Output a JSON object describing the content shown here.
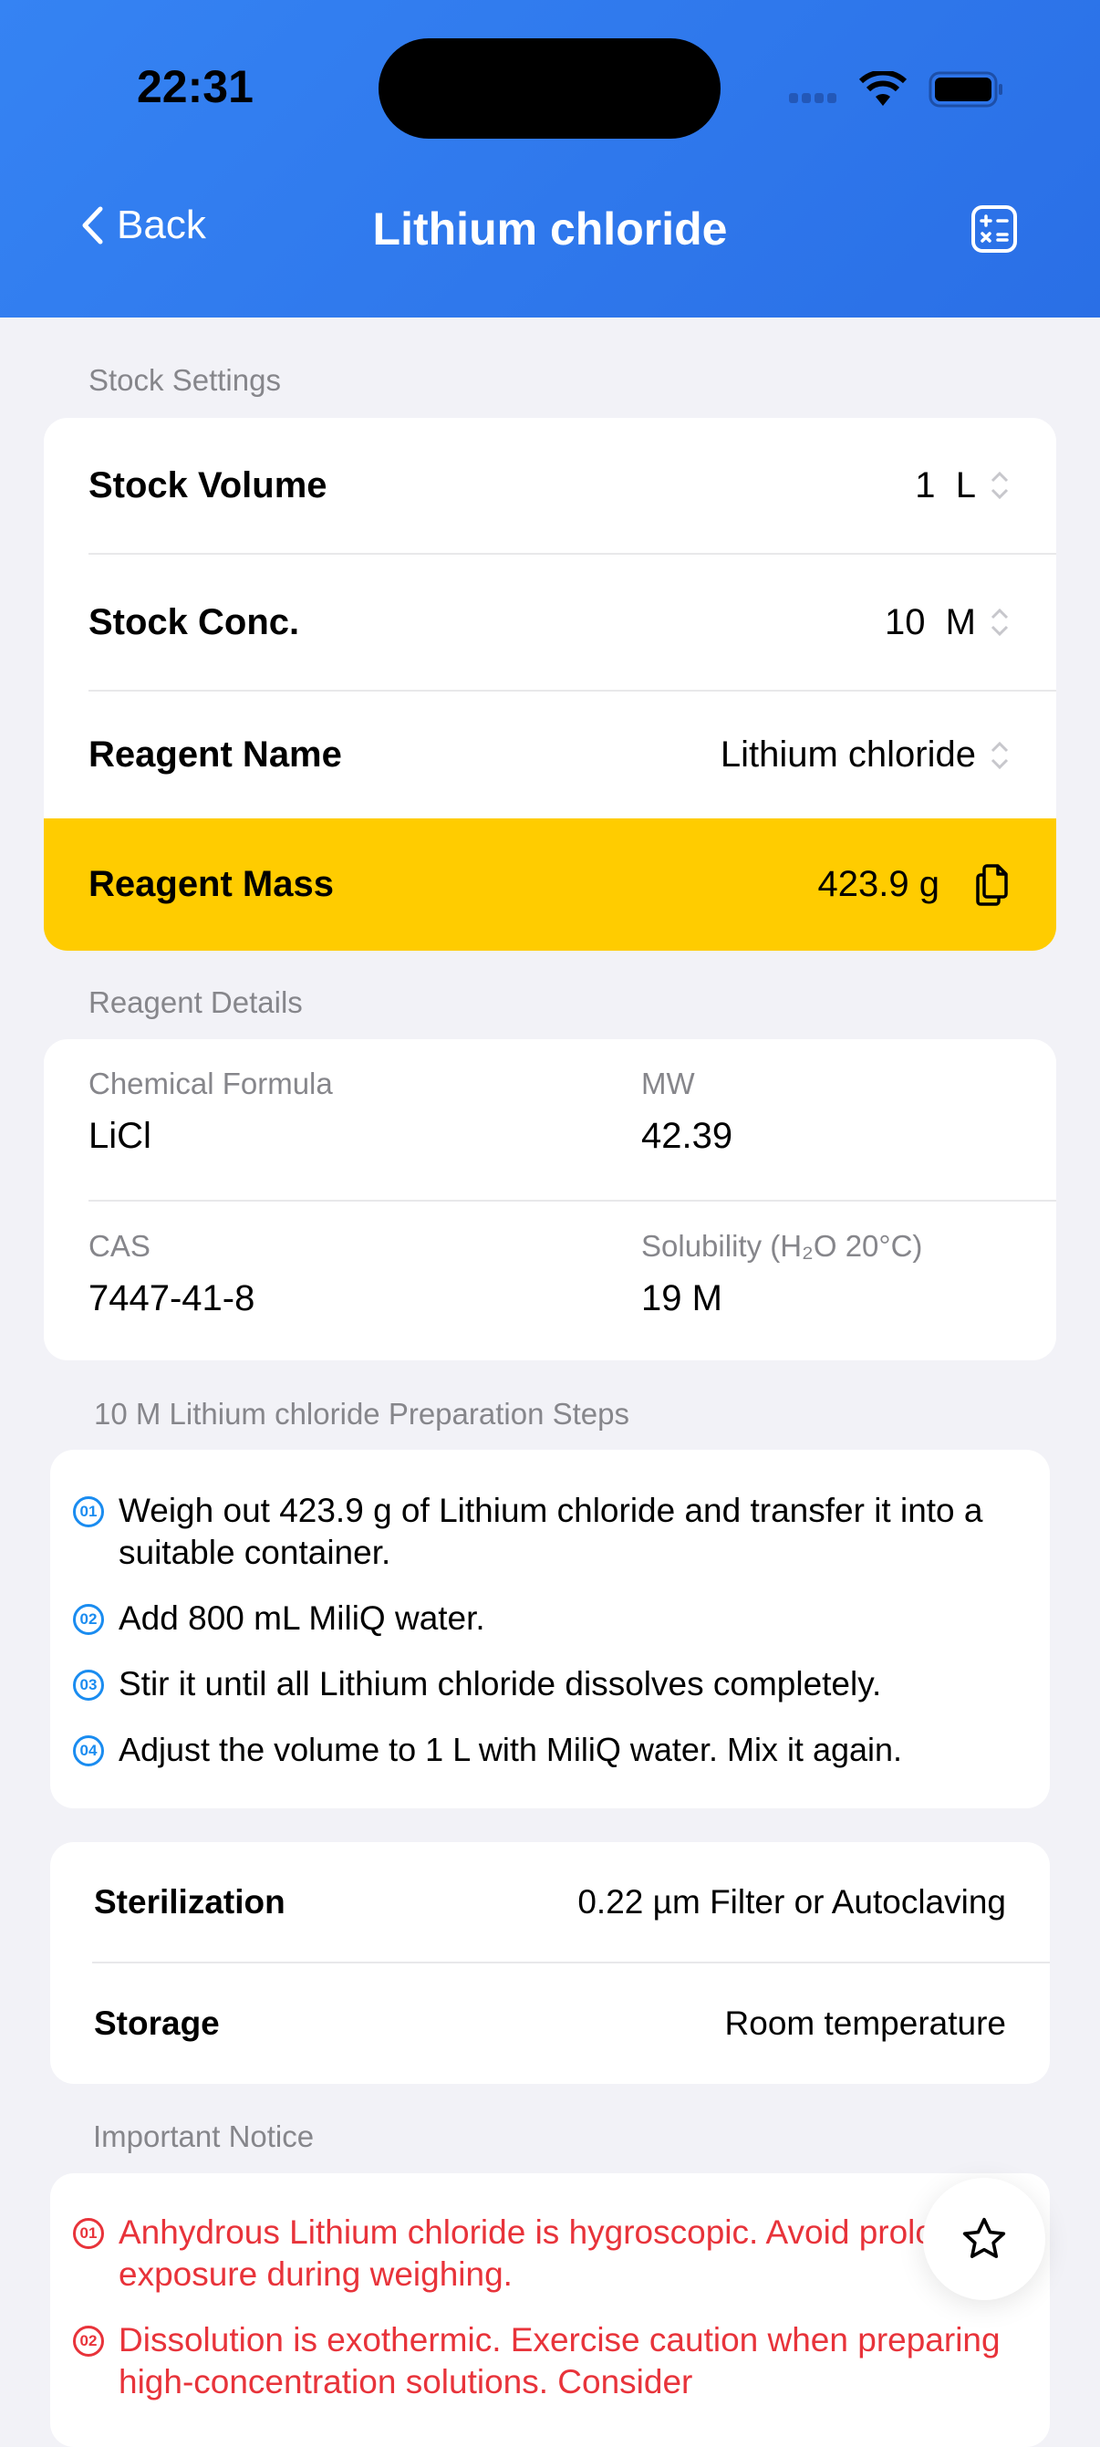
{
  "status_bar": {
    "time": "22:31"
  },
  "nav": {
    "back_label": "Back",
    "title": "Lithium chloride",
    "calculator_icon": "calculator-icon"
  },
  "stock_settings": {
    "section_label": "Stock Settings",
    "rows": [
      {
        "label": "Stock Volume",
        "value": "1  L"
      },
      {
        "label": "Stock Conc.",
        "value": "10  M"
      },
      {
        "label": "Reagent Name",
        "value": "Lithium chloride"
      }
    ],
    "mass": {
      "label": "Reagent Mass",
      "value": "423.9 g"
    },
    "highlight_color": "#ffcc00"
  },
  "reagent_details": {
    "section_label": "Reagent Details",
    "items": [
      {
        "label": "Chemical Formula",
        "value": "LiCl"
      },
      {
        "label": "MW",
        "value": "42.39"
      },
      {
        "label": "CAS",
        "value": "7447-41-8"
      },
      {
        "label": "Solubility (H₂O 20°C)",
        "value": "19 M"
      }
    ]
  },
  "preparation": {
    "section_label": "10 M Lithium chloride Preparation Steps",
    "steps": [
      {
        "num": "01",
        "text": "Weigh out 423.9 g of Lithium chloride and transfer it into a suitable container."
      },
      {
        "num": "02",
        "text": "Add 800 mL MiliQ water."
      },
      {
        "num": "03",
        "text": "Stir it until all Lithium chloride dissolves completely."
      },
      {
        "num": "04",
        "text": "Adjust the volume to 1 L with MiliQ water. Mix it again."
      }
    ],
    "accent_color": "#1a8cf0"
  },
  "handling": [
    {
      "label": "Sterilization",
      "value": "0.22 µm Filter or Autoclaving"
    },
    {
      "label": "Storage",
      "value": "Room temperature"
    }
  ],
  "notice": {
    "section_label": "Important Notice",
    "items": [
      {
        "num": "01",
        "text": "Anhydrous Lithium chloride is hygroscopic. Avoid prolonged exposure during weighing."
      },
      {
        "num": "02",
        "text": "Dissolution is exothermic. Exercise caution when preparing high-concentration solutions. Consider"
      }
    ],
    "color": "#e8333a"
  },
  "favorite_icon": "star-icon"
}
